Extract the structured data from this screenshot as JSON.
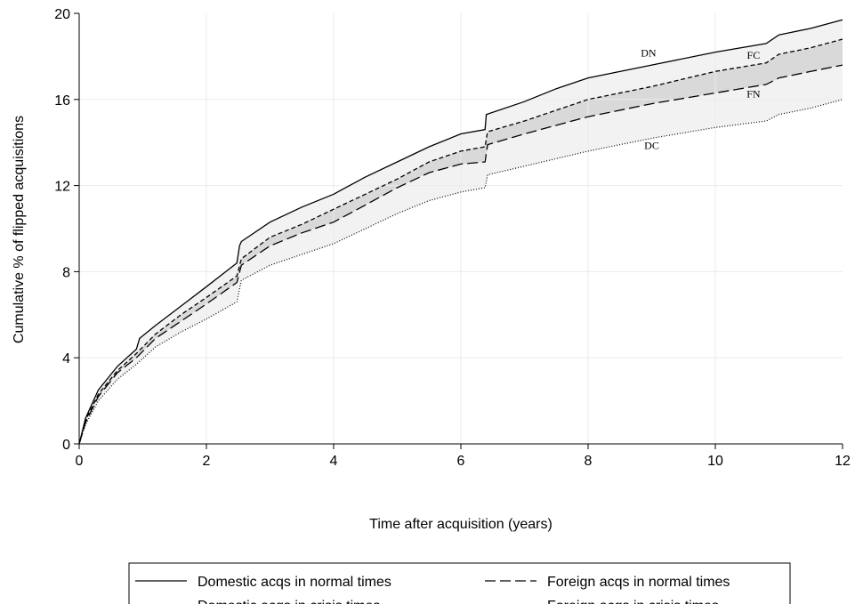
{
  "chart_data": {
    "type": "line",
    "title": "",
    "xlabel": "Time after acquisition (years)",
    "ylabel": "Cumulative % of flipped acquisitions",
    "xlim": [
      0,
      12
    ],
    "ylim": [
      0,
      20
    ],
    "xticks": [
      0,
      2,
      4,
      6,
      8,
      10,
      12
    ],
    "yticks": [
      0,
      4,
      8,
      12,
      16,
      20
    ],
    "grid": true,
    "legend_position": "bottom",
    "colors": {
      "line": "#000000",
      "band_dark": "#d9d9d9",
      "band_light": "#f2f2f2",
      "grid": "#ebebeb"
    },
    "series": [
      {
        "name": "Domestic acqs in normal times",
        "label": "DN",
        "style": "solid",
        "x": [
          0,
          0.1,
          0.3,
          0.6,
          0.9,
          0.95,
          1.2,
          1.6,
          2.0,
          2.48,
          2.52,
          2.55,
          3.0,
          3.5,
          4.0,
          4.5,
          5.0,
          5.5,
          6.0,
          6.38,
          6.4,
          7.0,
          7.5,
          8.0,
          9.0,
          10.0,
          10.8,
          11.0,
          11.5,
          12.0
        ],
        "y": [
          0,
          1.2,
          2.5,
          3.6,
          4.4,
          4.9,
          5.5,
          6.4,
          7.3,
          8.4,
          9.2,
          9.4,
          10.3,
          11.0,
          11.6,
          12.4,
          13.1,
          13.8,
          14.4,
          14.6,
          15.3,
          15.9,
          16.5,
          17.0,
          17.6,
          18.2,
          18.6,
          19.0,
          19.3,
          19.7
        ]
      },
      {
        "name": "Foreign acqs in normal times",
        "label": "FN",
        "style": "longdash",
        "x": [
          0,
          0.1,
          0.3,
          0.6,
          0.9,
          1.2,
          1.6,
          2.0,
          2.48,
          2.55,
          3.0,
          3.5,
          4.0,
          4.5,
          5.0,
          5.5,
          6.0,
          6.38,
          6.42,
          7.0,
          8.0,
          9.0,
          10.0,
          10.8,
          11.0,
          11.5,
          12.0
        ],
        "y": [
          0,
          1.0,
          2.2,
          3.3,
          4.0,
          4.9,
          5.7,
          6.5,
          7.5,
          8.3,
          9.2,
          9.8,
          10.3,
          11.1,
          11.9,
          12.6,
          13.0,
          13.1,
          13.9,
          14.4,
          15.2,
          15.8,
          16.3,
          16.7,
          17.0,
          17.3,
          17.6
        ]
      },
      {
        "name": "Domestic acqs in crisis times",
        "label": "DC",
        "style": "dotted",
        "x": [
          0,
          0.1,
          0.3,
          0.6,
          0.9,
          1.2,
          1.6,
          2.0,
          2.48,
          2.55,
          3.0,
          3.5,
          4.0,
          4.5,
          5.0,
          5.5,
          6.0,
          6.38,
          6.42,
          7.0,
          8.0,
          9.0,
          10.0,
          10.8,
          11.0,
          11.5,
          12.0
        ],
        "y": [
          0,
          0.9,
          2.0,
          3.0,
          3.7,
          4.5,
          5.2,
          5.8,
          6.6,
          7.6,
          8.3,
          8.8,
          9.3,
          10.0,
          10.7,
          11.3,
          11.7,
          11.9,
          12.5,
          12.9,
          13.6,
          14.2,
          14.7,
          15.0,
          15.3,
          15.6,
          16.0
        ]
      },
      {
        "name": "Foreign  acqs in crisis times",
        "label": "FC",
        "style": "shortdash",
        "x": [
          0,
          0.1,
          0.3,
          0.6,
          0.9,
          1.2,
          1.6,
          2.0,
          2.48,
          2.55,
          3.0,
          3.5,
          4.0,
          4.5,
          5.0,
          5.5,
          6.0,
          6.38,
          6.42,
          7.0,
          8.0,
          9.0,
          10.0,
          10.8,
          11.0,
          11.5,
          12.0
        ],
        "y": [
          0,
          1.1,
          2.3,
          3.4,
          4.2,
          5.1,
          6.0,
          6.8,
          7.8,
          8.6,
          9.6,
          10.2,
          10.9,
          11.6,
          12.3,
          13.1,
          13.6,
          13.8,
          14.5,
          15.0,
          16.0,
          16.6,
          17.3,
          17.7,
          18.1,
          18.4,
          18.8
        ]
      }
    ],
    "annotations": [
      {
        "text": "DN",
        "x": 8.95,
        "y": 18.0
      },
      {
        "text": "FC",
        "x": 10.6,
        "y": 17.9
      },
      {
        "text": "FN",
        "x": 10.6,
        "y": 16.1
      },
      {
        "text": "DC",
        "x": 9.0,
        "y": 13.7
      }
    ],
    "legend": [
      {
        "text": "Domestic acqs in normal times",
        "style": "solid"
      },
      {
        "text": "Foreign acqs in normal times",
        "style": "longdash"
      },
      {
        "text": "Domestic acqs in crisis times",
        "style": "dotted"
      },
      {
        "text": "Foreign  acqs in crisis times",
        "style": "shortdash"
      }
    ]
  }
}
